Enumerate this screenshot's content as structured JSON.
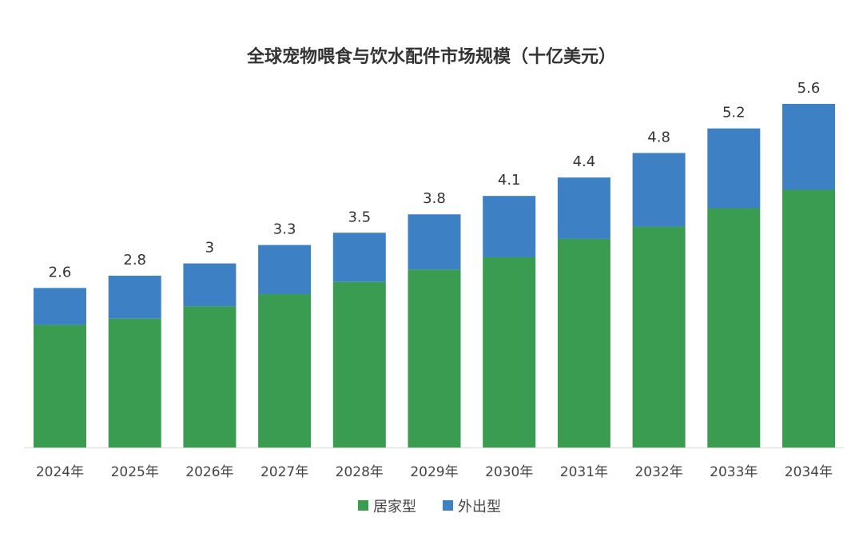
{
  "chart_data": {
    "type": "bar",
    "stacked": true,
    "title": "全球宠物喂食与饮水配件市场规模（十亿美元）",
    "xlabel": "",
    "ylabel": "",
    "ylim": [
      0,
      5.6
    ],
    "grid": false,
    "legend_position": "bottom",
    "categories": [
      "2024年",
      "2025年",
      "2026年",
      "2027年",
      "2028年",
      "2029年",
      "2030年",
      "2031年",
      "2032年",
      "2033年",
      "2034年"
    ],
    "series": [
      {
        "name": "居家型",
        "color": "#3a9c50",
        "values": [
          2.0,
          2.1,
          2.3,
          2.5,
          2.7,
          2.9,
          3.1,
          3.4,
          3.6,
          3.9,
          4.2
        ]
      },
      {
        "name": "外出型",
        "color": "#3d80c4",
        "values": [
          0.6,
          0.7,
          0.7,
          0.8,
          0.8,
          0.9,
          1.0,
          1.0,
          1.2,
          1.3,
          1.4
        ]
      }
    ],
    "totals": [
      "2.6",
      "2.8",
      "3",
      "3.3",
      "3.5",
      "3.8",
      "4.1",
      "4.4",
      "4.8",
      "5.2",
      "5.6"
    ]
  }
}
